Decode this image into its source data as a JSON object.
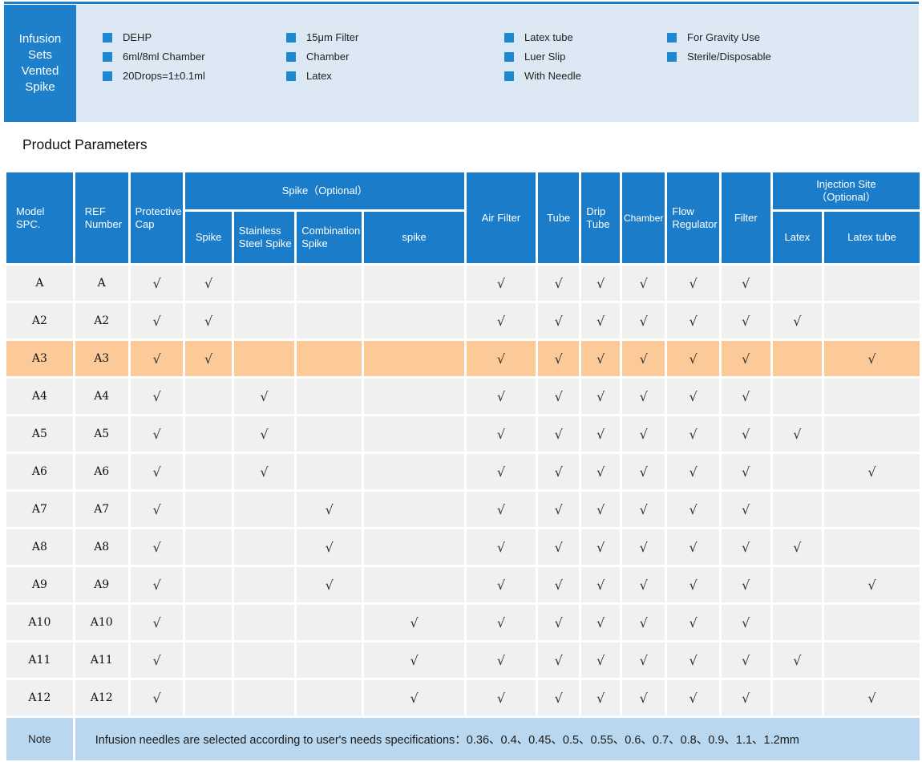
{
  "title_box": {
    "lines": [
      "Infusion",
      "Sets",
      "Vented",
      "Spike"
    ]
  },
  "features": {
    "columns": [
      {
        "items": [
          "DEHP",
          "6ml/8ml Chamber",
          "20Drops=1±0.1ml"
        ]
      },
      {
        "items": [
          "15μm Filter",
          "Chamber",
          "Latex"
        ]
      },
      {
        "items": [
          "Latex tube",
          "Luer Slip",
          "With Needle"
        ]
      },
      {
        "items": [
          "For Gravity Use",
          "Sterile/Disposable"
        ]
      }
    ]
  },
  "section_title": "Product Parameters",
  "table": {
    "check_mark": "√",
    "header": {
      "model": "Model SPC.",
      "ref": "REF Number",
      "protective_cap": "Protective Cap",
      "spike_group": "Spike（Optional）",
      "spike_sub": [
        "Spike",
        "Stainless Steel Spike",
        "Combination Spike",
        "spike"
      ],
      "air_filter": "Air Filter",
      "tube": "Tube",
      "drip_tube": "Drip Tube",
      "chamber": "Chamber",
      "flow_regulator": "Flow Regulator",
      "filter": "Filter",
      "injection_group_line1": "Injection Site",
      "injection_group_line2": "（Optional）",
      "injection_sub": [
        "Latex",
        "Latex tube"
      ]
    },
    "check_columns": [
      "protective_cap",
      "spike",
      "stainless_steel_spike",
      "combination_spike",
      "spike2",
      "air_filter",
      "tube",
      "drip_tube",
      "chamber",
      "flow_regulator",
      "filter",
      "latex",
      "latex_tube"
    ],
    "rows": [
      {
        "model": "A",
        "ref": "A",
        "highlight": false,
        "checks": [
          1,
          1,
          0,
          0,
          0,
          1,
          1,
          1,
          1,
          1,
          1,
          0,
          0
        ]
      },
      {
        "model": "A2",
        "ref": "A2",
        "highlight": false,
        "checks": [
          1,
          1,
          0,
          0,
          0,
          1,
          1,
          1,
          1,
          1,
          1,
          1,
          0
        ]
      },
      {
        "model": "A3",
        "ref": "A3",
        "highlight": true,
        "checks": [
          1,
          1,
          0,
          0,
          0,
          1,
          1,
          1,
          1,
          1,
          1,
          0,
          1
        ]
      },
      {
        "model": "A4",
        "ref": "A4",
        "highlight": false,
        "checks": [
          1,
          0,
          1,
          0,
          0,
          1,
          1,
          1,
          1,
          1,
          1,
          0,
          0
        ]
      },
      {
        "model": "A5",
        "ref": "A5",
        "highlight": false,
        "checks": [
          1,
          0,
          1,
          0,
          0,
          1,
          1,
          1,
          1,
          1,
          1,
          1,
          0
        ]
      },
      {
        "model": "A6",
        "ref": "A6",
        "highlight": false,
        "checks": [
          1,
          0,
          1,
          0,
          0,
          1,
          1,
          1,
          1,
          1,
          1,
          0,
          1
        ]
      },
      {
        "model": "A7",
        "ref": "A7",
        "highlight": false,
        "checks": [
          1,
          0,
          0,
          1,
          0,
          1,
          1,
          1,
          1,
          1,
          1,
          0,
          0
        ]
      },
      {
        "model": "A8",
        "ref": "A8",
        "highlight": false,
        "checks": [
          1,
          0,
          0,
          1,
          0,
          1,
          1,
          1,
          1,
          1,
          1,
          1,
          0
        ]
      },
      {
        "model": "A9",
        "ref": "A9",
        "highlight": false,
        "checks": [
          1,
          0,
          0,
          1,
          0,
          1,
          1,
          1,
          1,
          1,
          1,
          0,
          1
        ]
      },
      {
        "model": "A10",
        "ref": "A10",
        "highlight": false,
        "checks": [
          1,
          0,
          0,
          0,
          1,
          1,
          1,
          1,
          1,
          1,
          1,
          0,
          0
        ]
      },
      {
        "model": "A11",
        "ref": "A11",
        "highlight": false,
        "checks": [
          1,
          0,
          0,
          0,
          1,
          1,
          1,
          1,
          1,
          1,
          1,
          1,
          0
        ]
      },
      {
        "model": "A12",
        "ref": "A12",
        "highlight": false,
        "checks": [
          1,
          0,
          0,
          0,
          1,
          1,
          1,
          1,
          1,
          1,
          1,
          0,
          1
        ]
      }
    ]
  },
  "note": {
    "label": "Note",
    "text": "Infusion needles are selected according to user's needs specifications：0.36、0.4、0.45、0.5、0.55、0.6、0.7、0.8、0.9、1.1、1.2mm"
  },
  "colors": {
    "primary_blue": "#1b7dc9",
    "title_box_blue": "#1e80cb",
    "bullet_blue": "#1e88d2",
    "panel_bg": "#dce9f5",
    "row_bg": "#f0f0f0",
    "highlight_orange": "#fcca99",
    "note_bg": "#b9d7ee"
  }
}
